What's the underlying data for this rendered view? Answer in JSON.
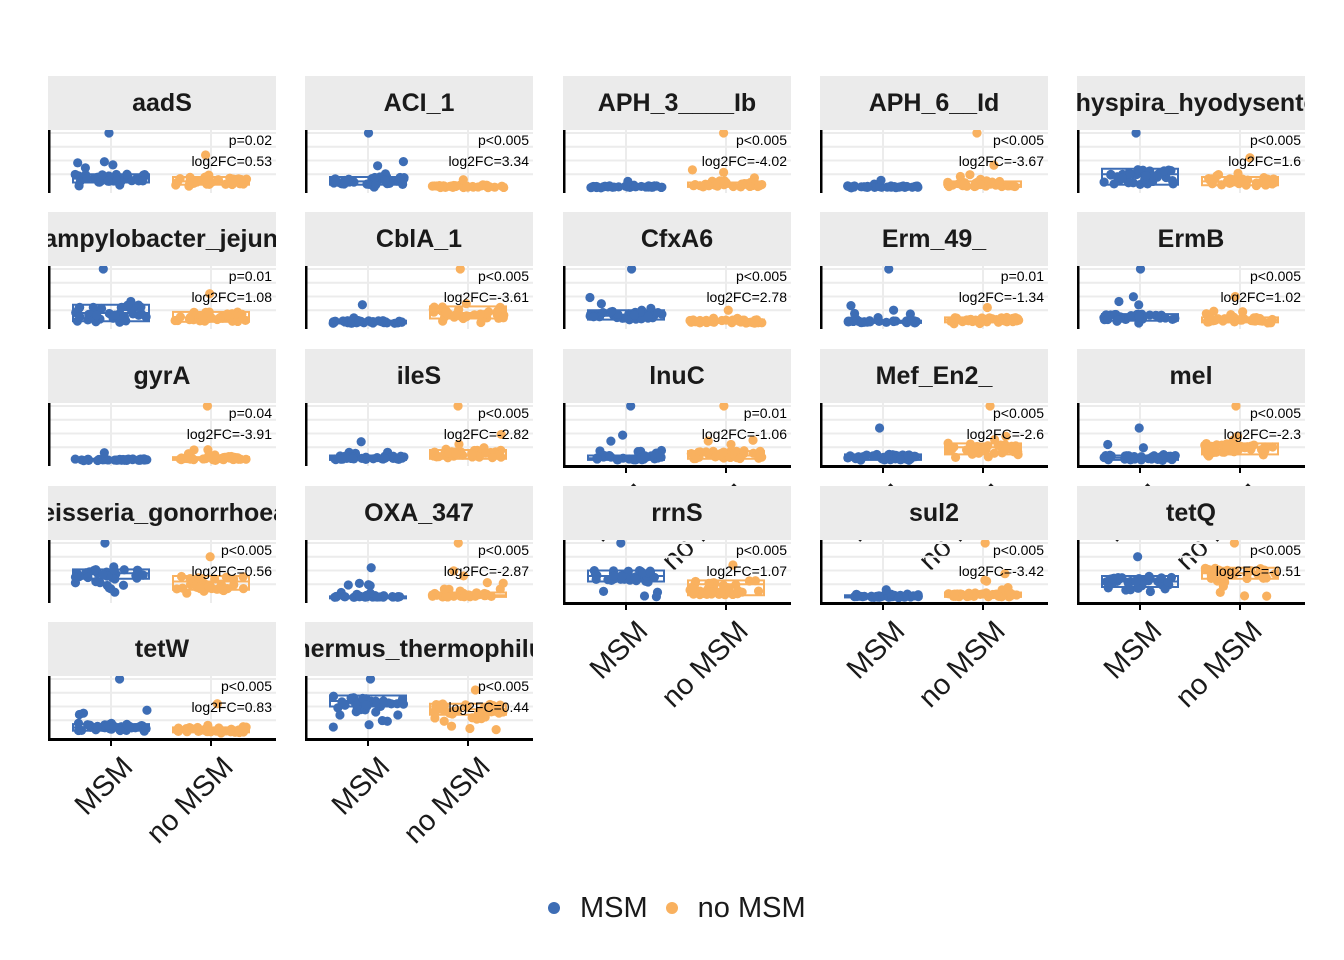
{
  "chart_data": {
    "type": "box-jitter",
    "layout": "faceted grid, 5 columns, free y scales (no y tick labels shown)",
    "groups": [
      "MSM",
      "no MSM"
    ],
    "colors": {
      "MSM": "#3d6db5",
      "no MSM": "#f9b15f"
    },
    "legend": {
      "position": "bottom",
      "items": [
        "MSM",
        "no MSM"
      ]
    },
    "grid": true,
    "facets": [
      {
        "title": "aadS",
        "p": "p=0.02",
        "fc": "log2FC=0.53",
        "msm": {
          "med": 0.17,
          "q1": 0.1,
          "q3": 0.25,
          "max": 1.0
        },
        "nomsm": {
          "med": 0.12,
          "q1": 0.06,
          "q3": 0.2,
          "max": 0.6
        }
      },
      {
        "title": "ACI_1",
        "p": "p<0.005",
        "fc": "log2FC=3.34",
        "msm": {
          "med": 0.12,
          "q1": 0.06,
          "q3": 0.2,
          "max": 1.0
        },
        "nomsm": {
          "med": 0.03,
          "q1": 0.01,
          "q3": 0.06,
          "max": 0.15
        }
      },
      {
        "title": "APH_3____Ib",
        "p": "p<0.005",
        "fc": "log2FC=-4.02",
        "msm": {
          "med": 0.02,
          "q1": 0.01,
          "q3": 0.04,
          "max": 0.12
        },
        "nomsm": {
          "med": 0.05,
          "q1": 0.02,
          "q3": 0.1,
          "max": 1.0
        }
      },
      {
        "title": "APH_6__Id",
        "p": "p<0.005",
        "fc": "log2FC=-3.67",
        "msm": {
          "med": 0.02,
          "q1": 0.01,
          "q3": 0.04,
          "max": 0.14
        },
        "nomsm": {
          "med": 0.06,
          "q1": 0.02,
          "q3": 0.12,
          "max": 1.0
        }
      },
      {
        "title": "Brachyspira_hyodysenteriae",
        "p": "p<0.005",
        "fc": "log2FC=1.6",
        "msm": {
          "med": 0.25,
          "q1": 0.06,
          "q3": 0.35,
          "max": 1.0
        },
        "nomsm": {
          "med": 0.12,
          "q1": 0.05,
          "q3": 0.2,
          "max": 0.55
        }
      },
      {
        "title": "Campylobacter_jejuni_",
        "p": "p=0.01",
        "fc": "log2FC=1.08",
        "msm": {
          "med": 0.2,
          "q1": 0.05,
          "q3": 0.35,
          "max": 1.0
        },
        "nomsm": {
          "med": 0.12,
          "q1": 0.04,
          "q3": 0.22,
          "max": 0.55
        }
      },
      {
        "title": "CblA_1",
        "p": "p<0.005",
        "fc": "log2FC=-3.61",
        "msm": {
          "med": 0.03,
          "q1": 0.01,
          "q3": 0.06,
          "max": 0.35
        },
        "nomsm": {
          "med": 0.2,
          "q1": 0.1,
          "q3": 0.32,
          "max": 1.0
        }
      },
      {
        "title": "CfxA6",
        "p": "p<0.005",
        "fc": "log2FC=2.78",
        "msm": {
          "med": 0.15,
          "q1": 0.08,
          "q3": 0.25,
          "max": 1.0
        },
        "nomsm": {
          "med": 0.05,
          "q1": 0.02,
          "q3": 0.08,
          "max": 0.25
        }
      },
      {
        "title": "Erm_49_",
        "p": "p=0.01",
        "fc": "log2FC=-1.34",
        "msm": {
          "med": 0.04,
          "q1": 0.02,
          "q3": 0.06,
          "max": 1.0
        },
        "nomsm": {
          "med": 0.08,
          "q1": 0.03,
          "q3": 0.12,
          "max": 0.3
        }
      },
      {
        "title": "ErmB",
        "p": "p<0.005",
        "fc": "log2FC=1.02",
        "msm": {
          "med": 0.12,
          "q1": 0.06,
          "q3": 0.18,
          "max": 1.0
        },
        "nomsm": {
          "med": 0.07,
          "q1": 0.03,
          "q3": 0.12,
          "max": 0.5
        }
      },
      {
        "title": "gyrA",
        "p": "p=0.04",
        "fc": "log2FC=-3.91",
        "msm": {
          "med": 0.02,
          "q1": 0.01,
          "q3": 0.04,
          "max": 0.15
        },
        "nomsm": {
          "med": 0.04,
          "q1": 0.02,
          "q3": 0.07,
          "max": 1.0
        }
      },
      {
        "title": "ileS",
        "p": "p<0.005",
        "fc": "log2FC=-2.82",
        "msm": {
          "med": 0.05,
          "q1": 0.02,
          "q3": 0.1,
          "max": 0.35
        },
        "nomsm": {
          "med": 0.1,
          "q1": 0.04,
          "q3": 0.2,
          "max": 1.0
        }
      },
      {
        "title": "lnuC",
        "p": "p=0.01",
        "fc": "log2FC=-1.06",
        "msm": {
          "med": 0.05,
          "q1": 0.02,
          "q3": 0.1,
          "max": 1.0
        },
        "nomsm": {
          "med": 0.1,
          "q1": 0.04,
          "q3": 0.18,
          "max": 1.0
        }
      },
      {
        "title": "Mef_En2_",
        "p": "p<0.005",
        "fc": "log2FC=-2.6",
        "msm": {
          "med": 0.06,
          "q1": 0.02,
          "q3": 0.12,
          "max": 0.6
        },
        "nomsm": {
          "med": 0.25,
          "q1": 0.12,
          "q3": 0.32,
          "max": 1.0
        }
      },
      {
        "title": "mel",
        "p": "p<0.005",
        "fc": "log2FC=-2.3",
        "msm": {
          "med": 0.06,
          "q1": 0.02,
          "q3": 0.1,
          "max": 0.6
        },
        "nomsm": {
          "med": 0.25,
          "q1": 0.12,
          "q3": 0.32,
          "max": 1.0
        }
      },
      {
        "title": "Neisseria_gonorrhoeae",
        "p": "p<0.005",
        "fc": "log2FC=0.56",
        "msm": {
          "med": 0.45,
          "q1": 0.35,
          "q3": 0.52,
          "max": 1.0
        },
        "nomsm": {
          "med": 0.3,
          "q1": 0.15,
          "q3": 0.4,
          "max": 0.75
        }
      },
      {
        "title": "OXA_347",
        "p": "p<0.005",
        "fc": "log2FC=-2.87",
        "msm": {
          "med": 0.02,
          "q1": 0.01,
          "q3": 0.03,
          "max": 0.55
        },
        "nomsm": {
          "med": 0.05,
          "q1": 0.02,
          "q3": 0.1,
          "max": 1.0
        }
      },
      {
        "title": "rrnS",
        "p": "p<0.005",
        "fc": "log2FC=1.07",
        "msm": {
          "med": 0.4,
          "q1": 0.3,
          "q3": 0.5,
          "max": 1.0
        },
        "nomsm": {
          "med": 0.25,
          "q1": 0.05,
          "q3": 0.32,
          "max": 0.6
        }
      },
      {
        "title": "sul2",
        "p": "p<0.005",
        "fc": "log2FC=-3.42",
        "msm": {
          "med": 0.03,
          "q1": 0.01,
          "q3": 0.05,
          "max": 0.15
        },
        "nomsm": {
          "med": 0.05,
          "q1": 0.02,
          "q3": 0.1,
          "max": 1.0
        }
      },
      {
        "title": "tetQ",
        "p": "p<0.005",
        "fc": "log2FC=-0.51",
        "msm": {
          "med": 0.3,
          "q1": 0.2,
          "q3": 0.4,
          "max": 0.75
        },
        "nomsm": {
          "med": 0.45,
          "q1": 0.35,
          "q3": 0.55,
          "max": 1.0
        }
      },
      {
        "title": "tetW",
        "p": "p<0.005",
        "fc": "log2FC=0.83",
        "msm": {
          "med": 0.12,
          "q1": 0.06,
          "q3": 0.18,
          "max": 1.0
        },
        "nomsm": {
          "med": 0.08,
          "q1": 0.03,
          "q3": 0.12,
          "max": 0.55
        }
      },
      {
        "title": "Thermus_thermophilus",
        "p": "p<0.005",
        "fc": "log2FC=0.44",
        "msm": {
          "med": 0.6,
          "q1": 0.5,
          "q3": 0.7,
          "max": 1.0
        },
        "nomsm": {
          "med": 0.45,
          "q1": 0.35,
          "q3": 0.55,
          "max": 0.8
        }
      }
    ]
  }
}
